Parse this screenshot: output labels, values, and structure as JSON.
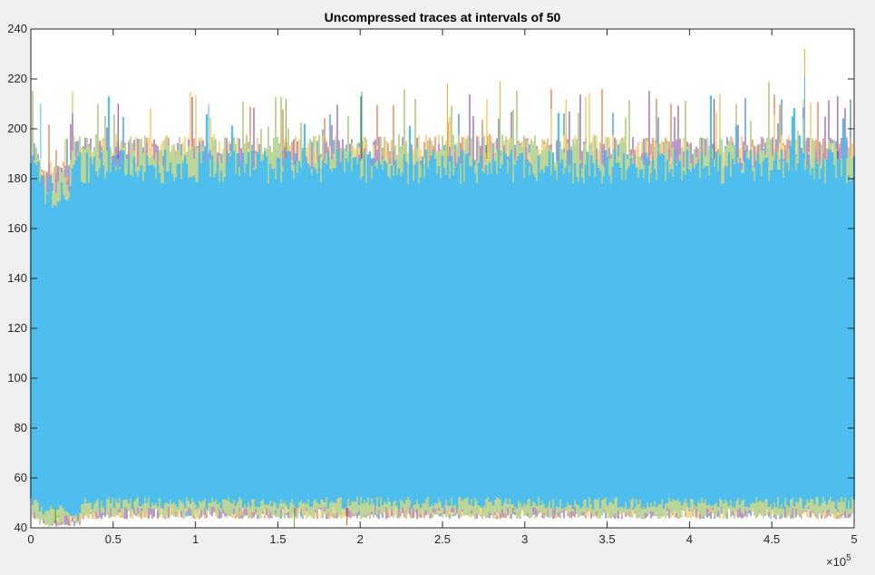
{
  "chart_data": {
    "type": "line",
    "title": "Uncompressed traces at intervals of 50",
    "xlabel": "",
    "ylabel": "",
    "xlim": [
      0,
      500000
    ],
    "ylim": [
      40,
      240
    ],
    "x_exponent_label": "×10",
    "x_exponent": "5",
    "x_ticks": [
      0,
      50000,
      100000,
      150000,
      200000,
      250000,
      300000,
      350000,
      400000,
      450000,
      500000
    ],
    "x_tick_labels": [
      "0",
      "0.5",
      "1",
      "1.5",
      "2",
      "2.5",
      "3",
      "3.5",
      "4",
      "4.5",
      "5"
    ],
    "y_ticks": [
      40,
      60,
      80,
      100,
      120,
      140,
      160,
      180,
      200,
      220,
      240
    ],
    "y_tick_labels": [
      "40",
      "60",
      "80",
      "100",
      "120",
      "140",
      "160",
      "180",
      "200",
      "220",
      "240"
    ],
    "grid": false,
    "series": [
      {
        "color": "#0072BD",
        "envelope": {
          "lower": 46,
          "upper": 186
        }
      },
      {
        "color": "#D95319",
        "envelope": {
          "lower": 46,
          "upper": 187
        }
      },
      {
        "color": "#EDB120",
        "envelope": {
          "lower": 46,
          "upper": 188
        }
      },
      {
        "color": "#7E2F8E",
        "envelope": {
          "lower": 46,
          "upper": 187
        }
      },
      {
        "color": "#77AC30",
        "envelope": {
          "lower": 46,
          "upper": 188
        }
      },
      {
        "color": "#4DBEEE",
        "envelope": {
          "lower": 50,
          "upper": 182
        }
      }
    ],
    "peaks": [
      {
        "x": 470000,
        "y": 232,
        "color": "#EDB120"
      },
      {
        "x": 285000,
        "y": 219,
        "color": "#EDB120"
      },
      {
        "x": 253000,
        "y": 218,
        "color": "#EDB120"
      },
      {
        "x": 470000,
        "y": 221,
        "color": "#4DBEEE"
      },
      {
        "x": 490000,
        "y": 213,
        "color": "#7E2F8E"
      },
      {
        "x": 201000,
        "y": 215,
        "color": "#77AC30"
      },
      {
        "x": 155000,
        "y": 212,
        "color": "#77AC30"
      },
      {
        "x": 53000,
        "y": 210,
        "color": "#7E2F8E"
      },
      {
        "x": 6000,
        "y": 210,
        "color": "#4DBEEE"
      },
      {
        "x": 108000,
        "y": 210,
        "color": "#4DBEEE"
      },
      {
        "x": 277000,
        "y": 212,
        "color": "#EDB120"
      },
      {
        "x": 325000,
        "y": 212,
        "color": "#EDB120"
      },
      {
        "x": 415000,
        "y": 212,
        "color": "#7E2F8E"
      },
      {
        "x": 160000,
        "y": 40,
        "color": "#77AC30"
      },
      {
        "x": 192000,
        "y": 41,
        "color": "#D95319"
      },
      {
        "x": 15000,
        "y": 42,
        "color": "#77AC30"
      }
    ]
  }
}
